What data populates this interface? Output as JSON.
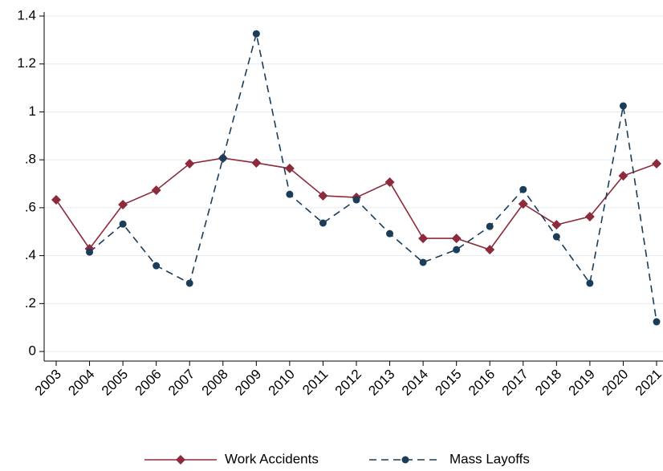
{
  "chart_data": {
    "type": "line",
    "categories": [
      "2003",
      "2004",
      "2005",
      "2006",
      "2007",
      "2008",
      "2009",
      "2010",
      "2011",
      "2012",
      "2013",
      "2014",
      "2015",
      "2016",
      "2017",
      "2018",
      "2019",
      "2020",
      "2021"
    ],
    "series": [
      {
        "name": "Work Accidents",
        "color": "#8b2b3b",
        "marker": "diamond",
        "line_style": "solid",
        "values": [
          0.633,
          0.429,
          0.613,
          0.673,
          0.784,
          0.807,
          0.787,
          0.764,
          0.65,
          0.643,
          0.707,
          0.472,
          0.472,
          0.425,
          0.616,
          0.529,
          0.563,
          0.733,
          0.784
        ]
      },
      {
        "name": "Mass Layoffs",
        "color": "#1a3d5a",
        "marker": "circle",
        "line_style": "dashed",
        "values": [
          null,
          0.415,
          0.532,
          0.358,
          0.285,
          0.807,
          1.326,
          0.656,
          0.536,
          0.633,
          0.492,
          0.372,
          0.425,
          0.522,
          0.676,
          0.479,
          0.285,
          1.025,
          0.124
        ]
      }
    ],
    "ylim": [
      -0.04,
      1.4
    ],
    "yticks": [
      0,
      {
        "value": 0.2,
        "label": ".2"
      },
      {
        "value": 0.4,
        "label": ".4"
      },
      {
        "value": 0.6,
        "label": ".6"
      },
      {
        "value": 0.8,
        "label": ".8"
      },
      1,
      1.2,
      1.4
    ],
    "grid": true,
    "legend": "bottom"
  }
}
